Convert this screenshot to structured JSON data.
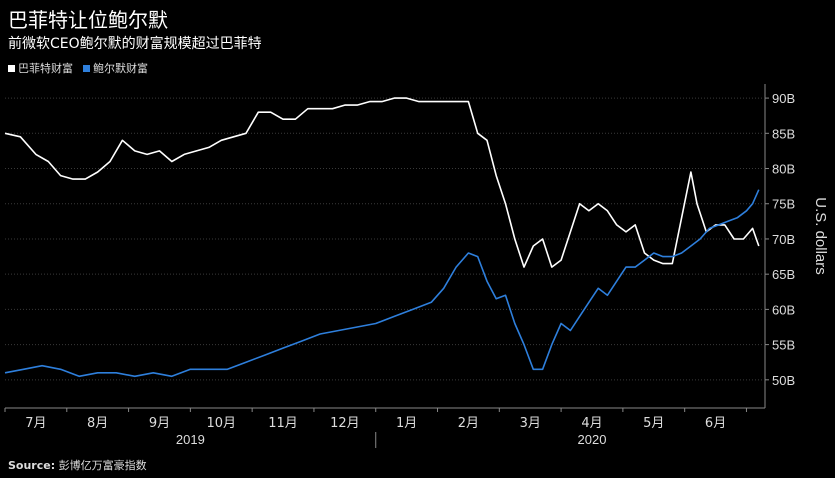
{
  "title": "巴菲特让位鲍尔默",
  "subtitle": "前微软CEO鲍尔默的财富规模超过巴菲特",
  "source_label": "Source:",
  "source_text": "彭博亿万富豪指数",
  "colors": {
    "background": "#000000",
    "buffett": "#ffffff",
    "ballmer": "#2e7fdc",
    "grid": "#555555",
    "axis": "#cccccc"
  },
  "chart_data": {
    "type": "line",
    "ylabel": "U.S. dollars",
    "ylim": [
      46,
      92
    ],
    "yticks": [
      50,
      55,
      60,
      65,
      70,
      75,
      80,
      85,
      90
    ],
    "ytick_labels": [
      "50B",
      "55B",
      "60B",
      "65B",
      "70B",
      "75B",
      "80B",
      "85B",
      "90B"
    ],
    "xlim": [
      0,
      12.3
    ],
    "months": [
      {
        "label": "7月",
        "x": 0.5
      },
      {
        "label": "8月",
        "x": 1.5
      },
      {
        "label": "9月",
        "x": 2.5
      },
      {
        "label": "10月",
        "x": 3.5
      },
      {
        "label": "11月",
        "x": 4.5
      },
      {
        "label": "12月",
        "x": 5.5
      },
      {
        "label": "1月",
        "x": 6.5
      },
      {
        "label": "2月",
        "x": 7.5
      },
      {
        "label": "3月",
        "x": 8.5
      },
      {
        "label": "4月",
        "x": 9.5
      },
      {
        "label": "5月",
        "x": 10.5
      },
      {
        "label": "6月",
        "x": 11.5
      }
    ],
    "years": [
      {
        "label": "2019",
        "x": 3.0
      },
      {
        "label": "2020",
        "x": 9.5
      }
    ],
    "year_divider_x": 6.0,
    "legend": [
      "巴菲特财富",
      "鲍尔默财富"
    ],
    "series": [
      {
        "name": "巴菲特财富",
        "color": "#ffffff",
        "x": [
          0,
          0.25,
          0.5,
          0.7,
          0.9,
          1.1,
          1.3,
          1.5,
          1.7,
          1.9,
          2.1,
          2.3,
          2.5,
          2.7,
          2.9,
          3.1,
          3.3,
          3.5,
          3.7,
          3.9,
          4.1,
          4.3,
          4.5,
          4.7,
          4.9,
          5.1,
          5.3,
          5.5,
          5.7,
          5.9,
          6.1,
          6.3,
          6.5,
          6.7,
          6.9,
          7.1,
          7.3,
          7.5,
          7.65,
          7.8,
          7.95,
          8.1,
          8.25,
          8.4,
          8.55,
          8.7,
          8.85,
          9.0,
          9.15,
          9.3,
          9.45,
          9.6,
          9.75,
          9.9,
          10.05,
          10.2,
          10.35,
          10.5,
          10.65,
          10.8,
          10.95,
          11.1,
          11.2,
          11.35,
          11.5,
          11.65,
          11.8,
          11.95,
          12.1,
          12.2
        ],
        "values": [
          85,
          84.5,
          82,
          81,
          79,
          78.5,
          78.5,
          79.5,
          81,
          84,
          82.5,
          82,
          82.5,
          81,
          82,
          82.5,
          83,
          84,
          84.5,
          85,
          88,
          88,
          87,
          87,
          88.5,
          88.5,
          88.5,
          89,
          89,
          89.5,
          89.5,
          90,
          90,
          89.5,
          89.5,
          89.5,
          89.5,
          89.5,
          85,
          84,
          79,
          75,
          70,
          66,
          69,
          70,
          66,
          67,
          71,
          75,
          74,
          75,
          74,
          72,
          71,
          72,
          68,
          67,
          66.5,
          66.5,
          73,
          79.5,
          75,
          71,
          72,
          72,
          70,
          70,
          71.5,
          69
        ]
      },
      {
        "name": "鲍尔默财富",
        "color": "#2e7fdc",
        "x": [
          0,
          0.3,
          0.6,
          0.9,
          1.2,
          1.5,
          1.8,
          2.1,
          2.4,
          2.7,
          3.0,
          3.3,
          3.6,
          3.9,
          4.2,
          4.5,
          4.8,
          5.1,
          5.4,
          5.7,
          6.0,
          6.3,
          6.6,
          6.9,
          7.1,
          7.3,
          7.5,
          7.65,
          7.8,
          7.95,
          8.1,
          8.25,
          8.4,
          8.55,
          8.7,
          8.85,
          9.0,
          9.15,
          9.3,
          9.45,
          9.6,
          9.75,
          9.9,
          10.05,
          10.2,
          10.35,
          10.5,
          10.65,
          10.8,
          10.95,
          11.1,
          11.25,
          11.4,
          11.55,
          11.7,
          11.85,
          12.0,
          12.1,
          12.2
        ],
        "values": [
          51,
          51.5,
          52,
          51.5,
          50.5,
          51,
          51,
          50.5,
          51,
          50.5,
          51.5,
          51.5,
          51.5,
          52.5,
          53.5,
          54.5,
          55.5,
          56.5,
          57,
          57.5,
          58,
          59,
          60,
          61,
          63,
          66,
          68,
          67.5,
          64,
          61.5,
          62,
          58,
          55,
          51.5,
          51.5,
          55,
          58,
          57,
          59,
          61,
          63,
          62,
          64,
          66,
          66,
          67,
          68,
          67.5,
          67.5,
          68,
          69,
          70,
          71.5,
          72,
          72.5,
          73,
          74,
          75,
          77
        ]
      }
    ]
  }
}
